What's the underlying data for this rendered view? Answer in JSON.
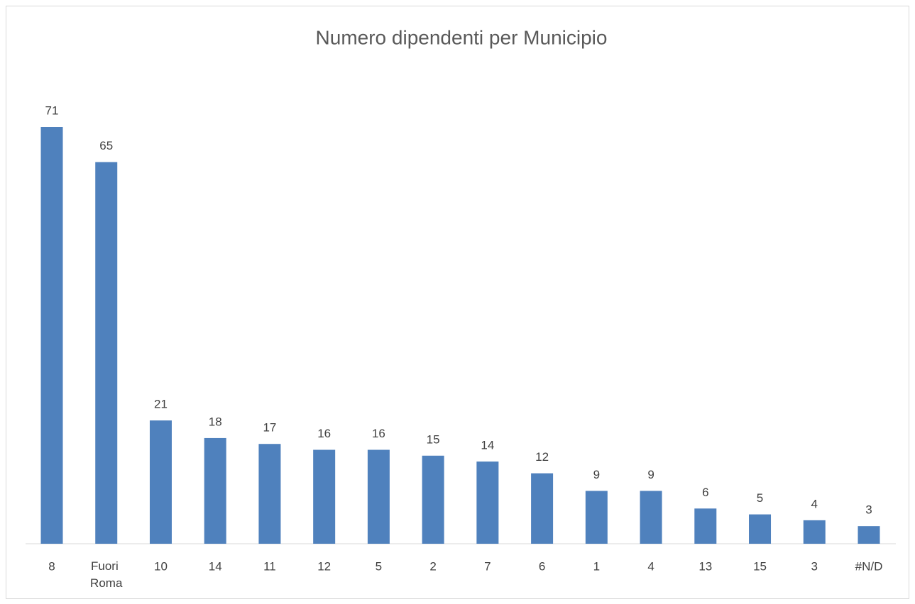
{
  "chart_data": {
    "type": "bar",
    "title": "Numero dipendenti per Municipio",
    "categories": [
      "8",
      "Fuori Roma",
      "10",
      "14",
      "11",
      "12",
      "5",
      "2",
      "7",
      "6",
      "1",
      "4",
      "13",
      "15",
      "3",
      "#N/D"
    ],
    "values": [
      71,
      65,
      21,
      18,
      17,
      16,
      16,
      15,
      14,
      12,
      9,
      9,
      6,
      5,
      4,
      3
    ],
    "color": "#4f81bd"
  }
}
